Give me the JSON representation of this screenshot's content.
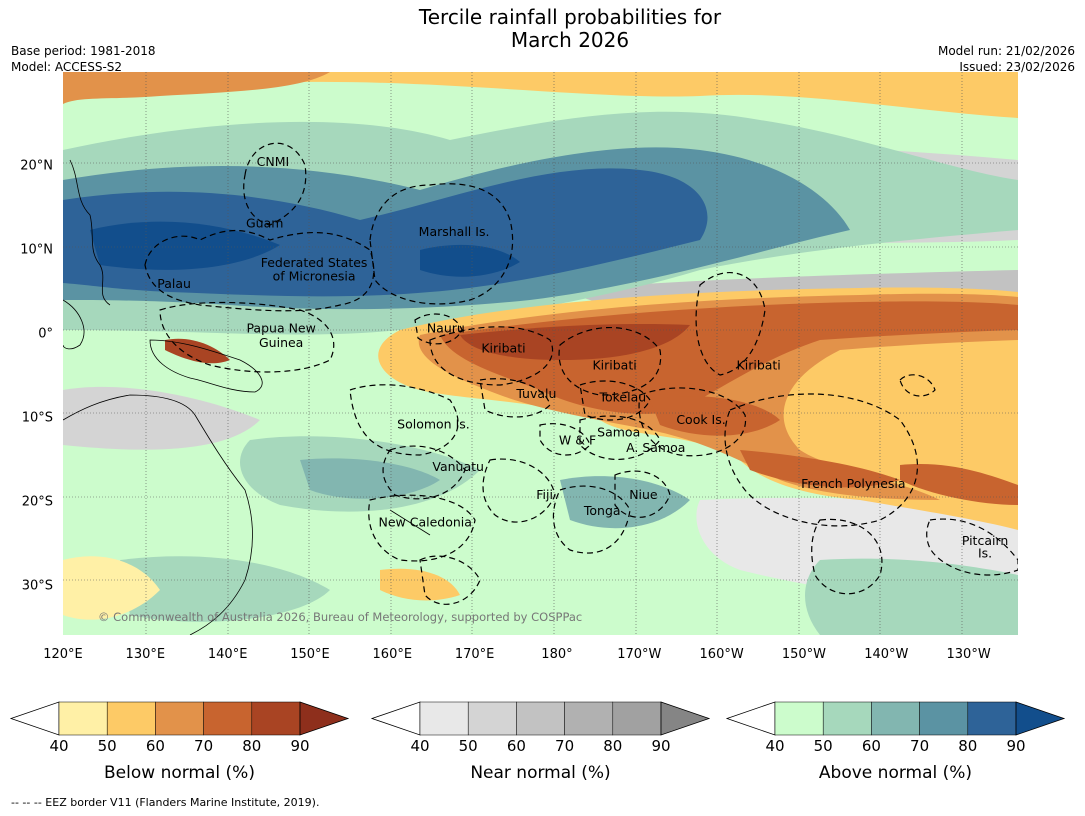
{
  "title": {
    "line1": "Tercile rainfall probabilities for",
    "line2": "March 2026"
  },
  "meta": {
    "base_period": "Base period: 1981-2018",
    "model": "Model: ACCESS-S2",
    "model_run": "Model run: 21/02/2026",
    "issued": "Issued: 23/02/2026"
  },
  "map": {
    "lon_range": [
      120,
      236
    ],
    "lat_range": [
      -36,
      31
    ],
    "lon_ticks": [
      "120°E",
      "130°E",
      "140°E",
      "150°E",
      "160°E",
      "170°E",
      "180°",
      "170°W",
      "160°W",
      "150°W",
      "140°W",
      "130°W"
    ],
    "lat_ticks": [
      "20°N",
      "10°N",
      "0°",
      "10°S",
      "20°S",
      "30°S"
    ],
    "copyright": "© Commonwealth of Australia 2026, Bureau of Meteorology, supported by COSPPac",
    "regions": [
      {
        "name": "CNMI",
        "lon": 145.5,
        "lat": 19.8
      },
      {
        "name": "Guam",
        "lon": 144.5,
        "lat": 12.5
      },
      {
        "name": "Marshall Is.",
        "lon": 167.5,
        "lat": 11.5
      },
      {
        "name": "Federated States",
        "lon": 150.5,
        "lat": 7.8
      },
      {
        "name": "of Micronesia",
        "lon": 150.5,
        "lat": 6.2
      },
      {
        "name": "Palau",
        "lon": 133.5,
        "lat": 5.3
      },
      {
        "name": "Papua New",
        "lon": 146.5,
        "lat": 0
      },
      {
        "name": "Guinea",
        "lon": 146.5,
        "lat": -1.7
      },
      {
        "name": "Nauru",
        "lon": 166.5,
        "lat": 0
      },
      {
        "name": "Kiribati",
        "lon": 173.5,
        "lat": -2.4
      },
      {
        "name": "Kiribati",
        "lon": 187,
        "lat": -4.4
      },
      {
        "name": "Kiribati",
        "lon": 204.5,
        "lat": -4.4
      },
      {
        "name": "Tuvalu",
        "lon": 177.5,
        "lat": -7.8
      },
      {
        "name": "Tokelau",
        "lon": 188,
        "lat": -8.2
      },
      {
        "name": "Solomon Is.",
        "lon": 165,
        "lat": -11.4
      },
      {
        "name": "Cook Is.",
        "lon": 197.5,
        "lat": -10.9
      },
      {
        "name": "Samoa",
        "lon": 187.5,
        "lat": -12.4
      },
      {
        "name": "W & F",
        "lon": 182.5,
        "lat": -13.3
      },
      {
        "name": "A. Samoa",
        "lon": 192,
        "lat": -14.2
      },
      {
        "name": "Vanuatu",
        "lon": 168,
        "lat": -16.5
      },
      {
        "name": "French Polynesia",
        "lon": 216,
        "lat": -18.5
      },
      {
        "name": "Fiji",
        "lon": 178.5,
        "lat": -19.8
      },
      {
        "name": "Niue",
        "lon": 190.5,
        "lat": -19.8
      },
      {
        "name": "Tonga",
        "lon": 185.5,
        "lat": -21.7
      },
      {
        "name": "New Caledonia",
        "lon": 164,
        "lat": -23.1
      },
      {
        "name": "Pitcairn",
        "lon": 232,
        "lat": -25.3
      },
      {
        "name": "Is.",
        "lon": 232,
        "lat": -26.8
      }
    ]
  },
  "colors": {
    "below": [
      "#fff0a6",
      "#fdca66",
      "#e2924a",
      "#c8642f",
      "#a94423",
      "#8e2f1c"
    ],
    "near": [
      "#e8e8e8",
      "#d4d4d4",
      "#c2c2c2",
      "#b1b1b1",
      "#a1a1a1",
      "#858585"
    ],
    "above": [
      "#ccfccc",
      "#a6d8bc",
      "#82b6b0",
      "#5b93a3",
      "#2e6398",
      "#124e8c"
    ]
  },
  "colorbars": [
    {
      "id": "below",
      "label": "Below normal (%)",
      "ticks": [
        "40",
        "50",
        "60",
        "70",
        "80",
        "90"
      ]
    },
    {
      "id": "near",
      "label": "Near normal (%)",
      "ticks": [
        "40",
        "50",
        "60",
        "70",
        "80",
        "90"
      ]
    },
    {
      "id": "above",
      "label": "Above normal (%)",
      "ticks": [
        "40",
        "50",
        "60",
        "70",
        "80",
        "90"
      ]
    }
  ],
  "footnote": "--  --  -- EEZ border V11 (Flanders Marine Institute, 2019)."
}
